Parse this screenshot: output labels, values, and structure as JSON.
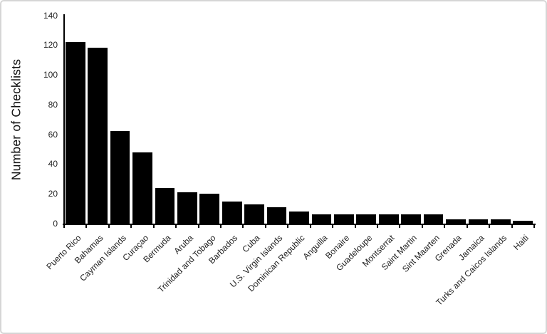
{
  "figure": {
    "background": "#ffffff",
    "border_color": "#d6d6d6"
  },
  "chart_data": {
    "type": "bar",
    "title": "",
    "xlabel": "",
    "ylabel": "Number of Checklists",
    "categories": [
      "Puerto Rico",
      "Bahamas",
      "Cayman Islands",
      "Curaçao",
      "Bermuda",
      "Aruba",
      "Trinidad and Tobago",
      "Barbados",
      "Cuba",
      "U.S. Virgin Islands",
      "Dominican Republic",
      "Anguilla",
      "Bonaire",
      "Guadeloupe",
      "Montserrat",
      "Saint Martin",
      "Sint Maarten",
      "Grenada",
      "Jamaica",
      "Turks and Caicos Islands",
      "Haiti"
    ],
    "values": [
      122,
      118,
      62,
      48,
      24,
      21,
      20,
      15,
      13,
      11,
      8,
      6,
      6,
      6,
      6,
      6,
      6,
      3,
      3,
      3,
      2
    ],
    "ylim": [
      0,
      140
    ],
    "yticks": [
      0,
      20,
      40,
      60,
      80,
      100,
      120,
      140
    ],
    "grid": false,
    "legend_position": "none",
    "bar_color": "#000000",
    "axis_color": "#000000",
    "label_color": "#1f1f1f",
    "x_tick_rotation_deg": 45
  }
}
